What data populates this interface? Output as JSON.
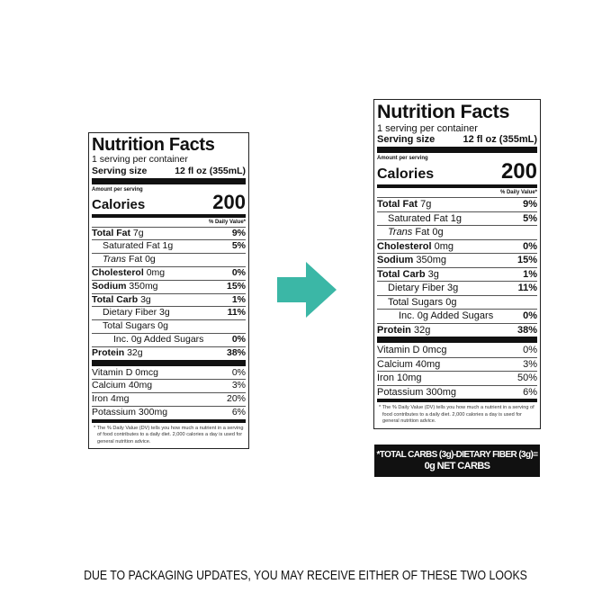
{
  "labels": [
    {
      "title": "Nutrition Facts",
      "servings": "1 serving per container",
      "serving_size_label": "Serving size",
      "serving_size": "12 fl oz (355mL)",
      "amount_per_serving": "Amount per serving",
      "calories_label": "Calories",
      "calories": "200",
      "dv_header": "% Daily Value*",
      "nutrients": [
        {
          "name": "Total Fat",
          "amount": "7g",
          "dv": "9%",
          "level": 0
        },
        {
          "name": "Saturated Fat",
          "amount": "1g",
          "dv": "5%",
          "level": 1
        },
        {
          "name": "Trans",
          "amount": "Fat 0g",
          "dv": null,
          "level": 1,
          "italic": true
        },
        {
          "name": "Cholesterol",
          "amount": "0mg",
          "dv": "0%",
          "level": 0
        },
        {
          "name": "Sodium",
          "amount": "350mg",
          "dv": "15%",
          "level": 0
        },
        {
          "name": "Total Carb",
          "amount": "3g",
          "dv": "1%",
          "level": 0
        },
        {
          "name": "Dietary Fiber",
          "amount": "3g",
          "dv": "11%",
          "level": 1
        },
        {
          "name": "Total Sugars",
          "amount": "0g",
          "dv": null,
          "level": 1
        },
        {
          "name": "Inc. 0g Added Sugars",
          "amount": null,
          "dv": "0%",
          "level": 2
        },
        {
          "name": "Protein",
          "amount": "32g",
          "dv": "38%",
          "level": 0
        }
      ],
      "vitamins": [
        {
          "name": "Vitamin D 0mcg",
          "dv": "0%"
        },
        {
          "name": "Calcium 40mg",
          "dv": "3%"
        },
        {
          "name": "Iron 4mg",
          "dv": "20%"
        },
        {
          "name": "Potassium 300mg",
          "dv": "6%"
        }
      ],
      "footnote": "* The % Daily Value (DV) tells you how much a nutrient in a serving of food contributes to a daily diet. 2,000 calories a day is used for general nutrition advice."
    },
    {
      "title": "Nutrition Facts",
      "servings": "1 serving per container",
      "serving_size_label": "Serving size",
      "serving_size": "12 fl oz (355mL)",
      "amount_per_serving": "Amount per serving",
      "calories_label": "Calories",
      "calories": "200",
      "dv_header": "% Daily Value*",
      "nutrients": [
        {
          "name": "Total Fat",
          "amount": "7g",
          "dv": "9%",
          "level": 0
        },
        {
          "name": "Saturated Fat",
          "amount": "1g",
          "dv": "5%",
          "level": 1
        },
        {
          "name": "Trans",
          "amount": "Fat 0g",
          "dv": null,
          "level": 1,
          "italic": true
        },
        {
          "name": "Cholesterol",
          "amount": "0mg",
          "dv": "0%",
          "level": 0
        },
        {
          "name": "Sodium",
          "amount": "350mg",
          "dv": "15%",
          "level": 0
        },
        {
          "name": "Total Carb",
          "amount": "3g",
          "dv": "1%",
          "level": 0
        },
        {
          "name": "Dietary Fiber",
          "amount": "3g",
          "dv": "11%",
          "level": 1
        },
        {
          "name": "Total Sugars",
          "amount": "0g",
          "dv": null,
          "level": 1
        },
        {
          "name": "Inc. 0g Added Sugars",
          "amount": null,
          "dv": "0%",
          "level": 2
        },
        {
          "name": "Protein",
          "amount": "32g",
          "dv": "38%",
          "level": 0
        }
      ],
      "vitamins": [
        {
          "name": "Vitamin D 0mcg",
          "dv": "0%"
        },
        {
          "name": "Calcium 40mg",
          "dv": "3%"
        },
        {
          "name": "Iron 10mg",
          "dv": "50%"
        },
        {
          "name": "Potassium 300mg",
          "dv": "6%"
        }
      ],
      "footnote": "* The % Daily Value (DV) tells you how much a nutrient in a serving of food contributes to a daily diet. 2,000 calories a day is used for general nutrition advice."
    }
  ],
  "banner": [
    "*TOTAL CARBS (3g)-DIETARY FIBER (3g)=",
    "0g NET CARBS"
  ],
  "caption": "DUE TO PACKAGING UPDATES, YOU MAY RECEIVE EITHER OF THESE TWO LOOKS"
}
